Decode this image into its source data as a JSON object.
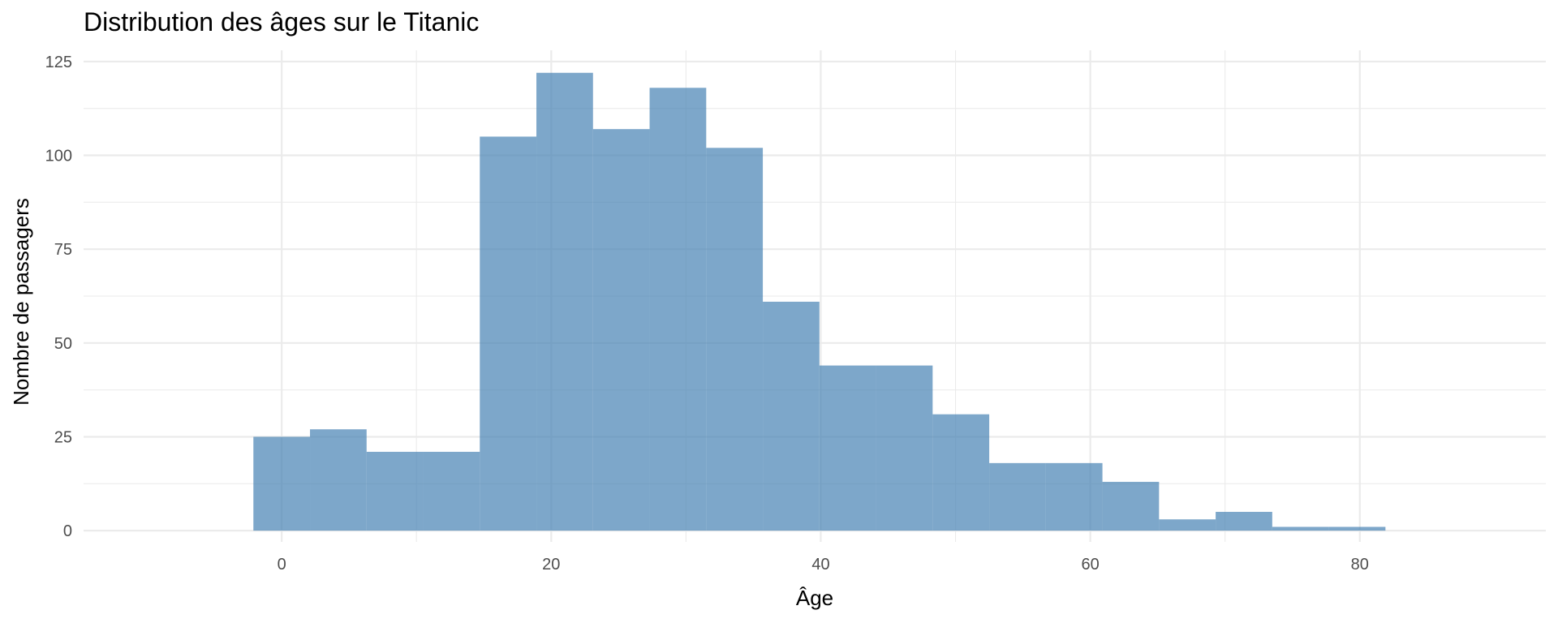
{
  "chart_data": {
    "type": "bar",
    "subtype": "histogram",
    "title": "Distribution des âges sur le Titanic",
    "xlabel": "Âge",
    "ylabel": "Nombre de passagers",
    "bin_width": 4.19,
    "bins": [
      {
        "start": -2.1,
        "end": 2.1,
        "count": 25
      },
      {
        "start": 2.1,
        "end": 6.3,
        "count": 27
      },
      {
        "start": 6.3,
        "end": 10.5,
        "count": 21
      },
      {
        "start": 10.5,
        "end": 14.7,
        "count": 21
      },
      {
        "start": 14.7,
        "end": 18.9,
        "count": 105
      },
      {
        "start": 18.9,
        "end": 23.1,
        "count": 122
      },
      {
        "start": 23.1,
        "end": 27.3,
        "count": 107
      },
      {
        "start": 27.3,
        "end": 31.5,
        "count": 118
      },
      {
        "start": 31.5,
        "end": 35.7,
        "count": 102
      },
      {
        "start": 35.7,
        "end": 39.9,
        "count": 61
      },
      {
        "start": 39.9,
        "end": 44.1,
        "count": 44
      },
      {
        "start": 44.1,
        "end": 48.3,
        "count": 44
      },
      {
        "start": 48.3,
        "end": 52.5,
        "count": 31
      },
      {
        "start": 52.5,
        "end": 56.7,
        "count": 18
      },
      {
        "start": 56.7,
        "end": 60.9,
        "count": 18
      },
      {
        "start": 60.9,
        "end": 65.1,
        "count": 13
      },
      {
        "start": 65.1,
        "end": 69.3,
        "count": 3
      },
      {
        "start": 69.3,
        "end": 73.5,
        "count": 5
      },
      {
        "start": 73.5,
        "end": 77.7,
        "count": 1
      },
      {
        "start": 77.7,
        "end": 81.9,
        "count": 1
      }
    ],
    "xlim": [
      -14.7,
      93.8
    ],
    "ylim": [
      -3,
      128
    ],
    "x_ticks": [
      0,
      20,
      40,
      60,
      80
    ],
    "y_ticks": [
      0,
      25,
      50,
      75,
      100,
      125
    ],
    "x_minor_ticks": [
      10,
      30,
      50,
      70
    ],
    "y_minor_ticks": [
      12.5,
      37.5,
      62.5,
      87.5,
      112.5
    ],
    "grid": true,
    "fill_color": "#4682b4",
    "fill_opacity": 0.7,
    "theme": "minimal"
  }
}
